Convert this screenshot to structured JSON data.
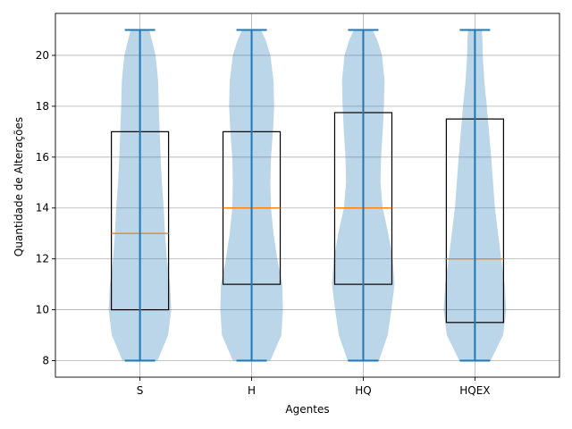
{
  "chart_data": {
    "type": "violin",
    "title": "",
    "xlabel": "Agentes",
    "ylabel": "Quantidade de Alterações",
    "categories": [
      "S",
      "H",
      "HQ",
      "HQEX"
    ],
    "ylim": [
      7.35,
      21.65
    ],
    "yticks": [
      8,
      10,
      12,
      14,
      16,
      18,
      20
    ],
    "grid": true,
    "colors": {
      "violin_fill": "#1f77b4",
      "violin_line": "#1f77b4",
      "median_line": "#ff7f0e",
      "box_edge": "#000000",
      "grid": "#b0b0b0"
    },
    "series": [
      {
        "category": "S",
        "min": 8,
        "max": 21,
        "q1": 10,
        "median": 13,
        "q3": 17,
        "density": [
          [
            8,
            0.56
          ],
          [
            9,
            0.9
          ],
          [
            10,
            1.0
          ],
          [
            11,
            0.96
          ],
          [
            12,
            0.86
          ],
          [
            13,
            0.8
          ],
          [
            14,
            0.76
          ],
          [
            15,
            0.7
          ],
          [
            16,
            0.66
          ],
          [
            17,
            0.63
          ],
          [
            18,
            0.6
          ],
          [
            19,
            0.58
          ],
          [
            20,
            0.5
          ],
          [
            20.5,
            0.4
          ],
          [
            21,
            0.3
          ]
        ]
      },
      {
        "category": "H",
        "min": 8,
        "max": 21,
        "q1": 11,
        "median": 14,
        "q3": 17,
        "density": [
          [
            8,
            0.6
          ],
          [
            9,
            0.95
          ],
          [
            10,
            1.0
          ],
          [
            11,
            0.98
          ],
          [
            12,
            0.82
          ],
          [
            13,
            0.7
          ],
          [
            14,
            0.62
          ],
          [
            15,
            0.6
          ],
          [
            16,
            0.62
          ],
          [
            17,
            0.68
          ],
          [
            18,
            0.72
          ],
          [
            19,
            0.7
          ],
          [
            20,
            0.6
          ],
          [
            20.6,
            0.45
          ],
          [
            21,
            0.3
          ]
        ]
      },
      {
        "category": "HQ",
        "min": 8,
        "max": 21,
        "q1": 11,
        "median": 14,
        "q3": 17.75,
        "density": [
          [
            8,
            0.5
          ],
          [
            9,
            0.78
          ],
          [
            10,
            0.9
          ],
          [
            11,
            1.0
          ],
          [
            12,
            0.94
          ],
          [
            13,
            0.8
          ],
          [
            14,
            0.62
          ],
          [
            15,
            0.55
          ],
          [
            16,
            0.57
          ],
          [
            17,
            0.62
          ],
          [
            18,
            0.66
          ],
          [
            19,
            0.68
          ],
          [
            20,
            0.6
          ],
          [
            20.6,
            0.45
          ],
          [
            21,
            0.3
          ]
        ]
      },
      {
        "category": "HQEX",
        "min": 8,
        "max": 21,
        "q1": 9.5,
        "median": 12,
        "q3": 17.5,
        "density": [
          [
            8,
            0.5
          ],
          [
            9,
            0.9
          ],
          [
            10,
            1.0
          ],
          [
            11,
            0.95
          ],
          [
            12,
            0.84
          ],
          [
            13,
            0.74
          ],
          [
            14,
            0.64
          ],
          [
            15,
            0.58
          ],
          [
            16,
            0.52
          ],
          [
            17,
            0.45
          ],
          [
            18,
            0.38
          ],
          [
            19,
            0.3
          ],
          [
            20,
            0.25
          ],
          [
            20.6,
            0.24
          ],
          [
            21,
            0.22
          ]
        ]
      }
    ]
  }
}
